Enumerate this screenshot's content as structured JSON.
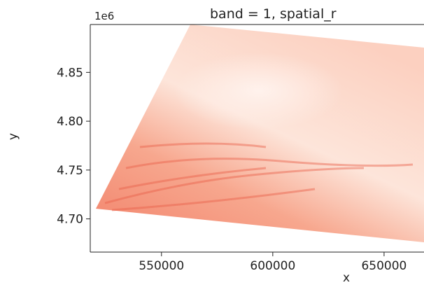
{
  "chart_data": {
    "type": "raster",
    "title": "band = 1, spatial_r",
    "x_label": "x",
    "y_label": "y",
    "y_offset_label": "1e6",
    "xlim": [
      518000,
      667000
    ],
    "xticks": [
      550000,
      600000,
      650000
    ],
    "ylim": [
      4666000,
      4899000
    ],
    "yticks": [
      {
        "value": 4700000,
        "label": "4.70"
      },
      {
        "value": 4750000,
        "label": "4.75"
      },
      {
        "value": 4800000,
        "label": "4.80"
      },
      {
        "value": 4850000,
        "label": "4.85"
      }
    ],
    "colormap": "Reds"
  }
}
